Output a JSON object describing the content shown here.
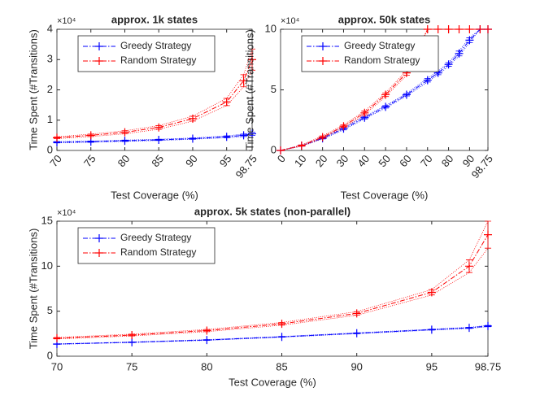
{
  "chart_data": [
    {
      "type": "line",
      "title": "approx. 1k states",
      "xlabel": "Test Coverage (%)",
      "ylabel": "Time Spent (#Transitions)",
      "y_multiplier": "×10⁴",
      "xlim": [
        70,
        98.75
      ],
      "xticks": [
        70,
        75,
        80,
        85,
        90,
        95,
        98.75
      ],
      "ylim": [
        0,
        4
      ],
      "yticks": [
        0,
        1,
        2,
        3,
        4
      ],
      "legend": "upper left",
      "x": [
        70,
        75,
        80,
        85,
        90,
        95,
        97.5,
        98.75
      ],
      "series": [
        {
          "name": "Greedy Strategy",
          "color": "#0000ff",
          "values": [
            0.27,
            0.29,
            0.32,
            0.35,
            0.39,
            0.45,
            0.5,
            0.55
          ],
          "errors": [
            0.02,
            0.02,
            0.02,
            0.02,
            0.02,
            0.03,
            0.04,
            0.05
          ]
        },
        {
          "name": "Random Strategy",
          "color": "#ff0000",
          "values": [
            0.42,
            0.5,
            0.6,
            0.76,
            1.05,
            1.6,
            2.3,
            3.0
          ],
          "errors": [
            0.03,
            0.04,
            0.05,
            0.06,
            0.08,
            0.12,
            0.2,
            0.35
          ]
        }
      ]
    },
    {
      "type": "line",
      "title": "approx. 50k states",
      "xlabel": "Test Coverage (%)",
      "ylabel": "Time Spent (#Transitions)",
      "y_multiplier": "×10⁴",
      "xlim": [
        0,
        98.75
      ],
      "xticks": [
        0,
        10,
        20,
        30,
        40,
        50,
        60,
        70,
        80,
        90,
        98.75
      ],
      "ylim": [
        0,
        10
      ],
      "yticks": [
        0,
        5,
        10
      ],
      "legend": "upper left",
      "x": [
        0,
        10,
        20,
        30,
        40,
        50,
        60,
        70,
        75,
        80,
        85,
        90,
        95,
        98.75
      ],
      "series": [
        {
          "name": "Greedy Strategy",
          "color": "#0000ff",
          "values": [
            0,
            0.4,
            1.0,
            1.8,
            2.7,
            3.6,
            4.6,
            5.8,
            6.4,
            7.1,
            8.0,
            9.1,
            10,
            10
          ],
          "errors": [
            0,
            0.05,
            0.05,
            0.1,
            0.1,
            0.1,
            0.1,
            0.15,
            0.15,
            0.15,
            0.2,
            0.2,
            0,
            0
          ]
        },
        {
          "name": "Random Strategy",
          "color": "#ff0000",
          "values": [
            0,
            0.4,
            1.1,
            2.0,
            3.1,
            4.6,
            6.4,
            10,
            10,
            10,
            10,
            10,
            10,
            10
          ],
          "errors": [
            0,
            0.05,
            0.1,
            0.1,
            0.15,
            0.15,
            0.2,
            0,
            0,
            0,
            0,
            0,
            0,
            0
          ]
        }
      ]
    },
    {
      "type": "line",
      "title": "approx. 5k states (non-parallel)",
      "xlabel": "Test Coverage (%)",
      "ylabel": "Time Spent (#Transitions)",
      "y_multiplier": "×10⁴",
      "xlim": [
        70,
        98.75
      ],
      "xticks": [
        70,
        75,
        80,
        85,
        90,
        95,
        98.75
      ],
      "ylim": [
        0,
        15
      ],
      "yticks": [
        0,
        5,
        10,
        15
      ],
      "legend": "upper left",
      "x": [
        70,
        75,
        80,
        85,
        90,
        95,
        97.5,
        98.75
      ],
      "series": [
        {
          "name": "Greedy Strategy",
          "color": "#0000ff",
          "values": [
            1.35,
            1.55,
            1.8,
            2.15,
            2.55,
            2.95,
            3.15,
            3.35
          ],
          "errors": [
            0.03,
            0.03,
            0.04,
            0.04,
            0.05,
            0.05,
            0.06,
            0.07
          ]
        },
        {
          "name": "Random Strategy",
          "color": "#ff0000",
          "values": [
            2.0,
            2.35,
            2.85,
            3.6,
            4.75,
            7.1,
            10.0,
            13.5
          ],
          "errors": [
            0.08,
            0.1,
            0.12,
            0.15,
            0.2,
            0.3,
            0.7,
            1.5
          ]
        }
      ]
    }
  ]
}
